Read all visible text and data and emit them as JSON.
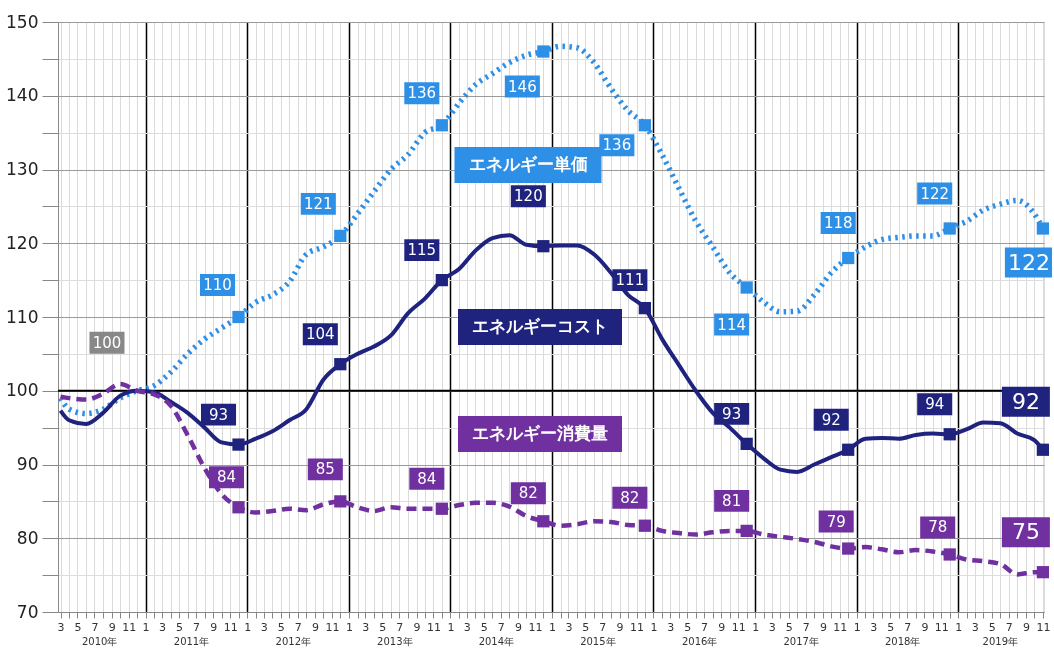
{
  "chart_data": {
    "type": "line",
    "x": [
      "2010-03",
      "2010-04",
      "2010-06",
      "2010-08",
      "2010-10",
      "2010-12",
      "2011-02",
      "2011-04",
      "2011-06",
      "2011-08",
      "2011-10",
      "2011-12",
      "2012-02",
      "2012-04",
      "2012-06",
      "2012-08",
      "2012-10",
      "2012-12",
      "2013-02",
      "2013-04",
      "2013-06",
      "2013-08",
      "2013-10",
      "2013-12",
      "2014-02",
      "2014-04",
      "2014-06",
      "2014-08",
      "2014-10",
      "2014-12",
      "2015-02",
      "2015-04",
      "2015-06",
      "2015-08",
      "2015-10",
      "2015-12",
      "2016-02",
      "2016-04",
      "2016-06",
      "2016-08",
      "2016-10",
      "2016-12",
      "2017-02",
      "2017-04",
      "2017-06",
      "2017-08",
      "2017-10",
      "2017-12",
      "2018-02",
      "2018-04",
      "2018-06",
      "2018-08",
      "2018-10",
      "2018-12",
      "2019-02",
      "2019-04",
      "2019-06",
      "2019-08",
      "2019-10",
      "2019-11"
    ],
    "series": [
      {
        "name": "エネルギー単価",
        "color": "#2e8fe6",
        "line_style": "dotted",
        "values": [
          99,
          97.5,
          96.9,
          97.5,
          99,
          100,
          100.7,
          102.5,
          105,
          107,
          108.5,
          110,
          112,
          113,
          114.8,
          118.5,
          119.5,
          121,
          124,
          127,
          130,
          132,
          135,
          136,
          139,
          141.5,
          143,
          144.5,
          145.5,
          146,
          146.7,
          146.5,
          144.5,
          141,
          138,
          136,
          132,
          127.5,
          123,
          119.5,
          116,
          114,
          112,
          110.7,
          110.8,
          113,
          116,
          118,
          119.5,
          120.5,
          120.8,
          121,
          121,
          122,
          123,
          124.5,
          125.3,
          125.8,
          124,
          122
        ],
        "value_labels": [
          null,
          null,
          null,
          null,
          null,
          null,
          null,
          null,
          null,
          null,
          null,
          "110",
          null,
          null,
          null,
          null,
          null,
          "121",
          null,
          null,
          null,
          null,
          null,
          "136",
          null,
          null,
          null,
          null,
          null,
          "146",
          null,
          null,
          null,
          null,
          null,
          "136",
          null,
          null,
          null,
          null,
          null,
          "114",
          null,
          null,
          null,
          null,
          null,
          "118",
          null,
          null,
          null,
          null,
          null,
          "122",
          null,
          null,
          null,
          null,
          null,
          "122"
        ]
      },
      {
        "name": "エネルギーコスト",
        "color": "#1f237e",
        "line_style": "solid",
        "values": [
          97.3,
          96,
          95.5,
          97,
          99.3,
          100,
          99.8,
          98.5,
          97,
          95,
          93,
          92.7,
          93.5,
          94.5,
          96,
          97.5,
          101.5,
          103.6,
          105,
          106,
          107.5,
          110.5,
          112.5,
          115,
          116.5,
          119,
          120.7,
          121.1,
          119.8,
          119.6,
          119.7,
          119.7,
          118.5,
          116,
          113,
          111.2,
          107,
          103.5,
          100,
          97,
          95,
          92.8,
          90.8,
          89.3,
          89,
          90,
          91,
          92,
          93.5,
          93.6,
          93.5,
          94,
          94.2,
          94.1,
          94.8,
          95.7,
          95.6,
          94.2,
          93.3,
          92
        ],
        "value_labels": [
          null,
          null,
          null,
          null,
          null,
          null,
          null,
          null,
          null,
          null,
          null,
          "93",
          null,
          null,
          null,
          null,
          null,
          "104",
          null,
          null,
          null,
          null,
          null,
          "115",
          null,
          null,
          null,
          null,
          null,
          "120",
          null,
          null,
          null,
          null,
          null,
          "111",
          null,
          null,
          null,
          null,
          null,
          "93",
          null,
          null,
          null,
          null,
          null,
          "92",
          null,
          null,
          null,
          null,
          null,
          "94",
          null,
          null,
          null,
          null,
          null,
          "92"
        ]
      },
      {
        "name": "エネルギー消費量",
        "color": "#7030a0",
        "line_style": "dashed",
        "values": [
          99.2,
          99,
          98.8,
          99.6,
          100.9,
          100,
          99.5,
          98,
          94,
          89.5,
          86,
          84.2,
          83.5,
          83.7,
          84,
          83.8,
          84.6,
          85,
          84.2,
          83.7,
          84.2,
          84,
          84,
          84,
          84.5,
          84.8,
          84.8,
          84.3,
          83,
          82.3,
          81.7,
          81.9,
          82.3,
          82.2,
          81.8,
          81.7,
          81,
          80.7,
          80.5,
          80.8,
          81,
          81,
          80.5,
          80.2,
          79.9,
          79.5,
          78.9,
          78.6,
          78.8,
          78.5,
          78.1,
          78.4,
          78.2,
          77.8,
          77.1,
          76.9,
          76.5,
          75.1,
          75.4,
          75.4
        ],
        "value_labels": [
          null,
          null,
          null,
          null,
          null,
          null,
          null,
          null,
          null,
          null,
          null,
          "84",
          null,
          null,
          null,
          null,
          null,
          "85",
          null,
          null,
          null,
          null,
          null,
          "84",
          null,
          null,
          null,
          null,
          null,
          "82",
          null,
          null,
          null,
          null,
          null,
          "82",
          null,
          null,
          null,
          null,
          null,
          "81",
          null,
          null,
          null,
          null,
          null,
          "79",
          null,
          null,
          null,
          null,
          null,
          "78",
          null,
          null,
          null,
          null,
          null,
          "75"
        ]
      }
    ],
    "annotations": [
      {
        "text": "100",
        "x": "2010-12",
        "y": 100
      }
    ],
    "ylim": [
      70,
      150
    ],
    "yticks": [
      70,
      {
        "value": 75,
        "label": null
      },
      80,
      {
        "value": 85,
        "label": null
      },
      90,
      {
        "value": 95,
        "label": null
      },
      100,
      {
        "value": 105,
        "label": null
      },
      110,
      {
        "value": 115,
        "label": null
      },
      120,
      {
        "value": 125,
        "label": null
      },
      130,
      {
        "value": 135,
        "label": null
      },
      140,
      {
        "value": 145,
        "label": null
      },
      150
    ],
    "xlim": [
      "2010-02-20",
      "2019-11-05"
    ],
    "xticks": [
      {
        "value": "2010-03",
        "label": "3"
      },
      {
        "value": "2010-04",
        "label": null
      },
      {
        "value": "2010-05",
        "label": "5"
      },
      {
        "value": "2010-06",
        "label": null
      },
      {
        "value": "2010-07",
        "label": "7"
      },
      {
        "value": "2010-08",
        "label": null
      },
      {
        "value": "2010-09",
        "label": "9"
      },
      {
        "value": "2010-10",
        "label": null
      },
      {
        "value": "2010-11",
        "label": "11"
      },
      {
        "value": "2010-12",
        "label": null
      },
      {
        "value": "2011-01",
        "label": "1"
      },
      {
        "value": "2011-02",
        "label": null
      },
      {
        "value": "2011-03",
        "label": "3"
      },
      {
        "value": "2011-04",
        "label": null
      },
      {
        "value": "2011-05",
        "label": "5"
      },
      {
        "value": "2011-06",
        "label": null
      },
      {
        "value": "2011-07",
        "label": "7"
      },
      {
        "value": "2011-08",
        "label": null
      },
      {
        "value": "2011-09",
        "label": "9"
      },
      {
        "value": "2011-10",
        "label": null
      },
      {
        "value": "2011-11",
        "label": "11"
      },
      {
        "value": "2011-12",
        "label": null
      },
      {
        "value": "2012-01",
        "label": "1"
      },
      {
        "value": "2012-02",
        "label": null
      },
      {
        "value": "2012-03",
        "label": "3"
      },
      {
        "value": "2012-04",
        "label": null
      },
      {
        "value": "2012-05",
        "label": "5"
      },
      {
        "value": "2012-06",
        "label": null
      },
      {
        "value": "2012-07",
        "label": "7"
      },
      {
        "value": "2012-08",
        "label": null
      },
      {
        "value": "2012-09",
        "label": "9"
      },
      {
        "value": "2012-10",
        "label": null
      },
      {
        "value": "2012-11",
        "label": "11"
      },
      {
        "value": "2012-12",
        "label": null
      },
      {
        "value": "2013-01",
        "label": "1"
      },
      {
        "value": "2013-02",
        "label": null
      },
      {
        "value": "2013-03",
        "label": "3"
      },
      {
        "value": "2013-04",
        "label": null
      },
      {
        "value": "2013-05",
        "label": "5"
      },
      {
        "value": "2013-06",
        "label": null
      },
      {
        "value": "2013-07",
        "label": "7"
      },
      {
        "value": "2013-08",
        "label": null
      },
      {
        "value": "2013-09",
        "label": "9"
      },
      {
        "value": "2013-10",
        "label": null
      },
      {
        "value": "2013-11",
        "label": "11"
      },
      {
        "value": "2013-12",
        "label": null
      },
      {
        "value": "2014-01",
        "label": "1"
      },
      {
        "value": "2014-02",
        "label": null
      },
      {
        "value": "2014-03",
        "label": "3"
      },
      {
        "value": "2014-04",
        "label": null
      },
      {
        "value": "2014-05",
        "label": "5"
      },
      {
        "value": "2014-06",
        "label": null
      },
      {
        "value": "2014-07",
        "label": "7"
      },
      {
        "value": "2014-08",
        "label": null
      },
      {
        "value": "2014-09",
        "label": "9"
      },
      {
        "value": "2014-10",
        "label": null
      },
      {
        "value": "2014-11",
        "label": "11"
      },
      {
        "value": "2014-12",
        "label": null
      },
      {
        "value": "2015-01",
        "label": "1"
      },
      {
        "value": "2015-02",
        "label": null
      },
      {
        "value": "2015-03",
        "label": "3"
      },
      {
        "value": "2015-04",
        "label": null
      },
      {
        "value": "2015-05",
        "label": "5"
      },
      {
        "value": "2015-06",
        "label": null
      },
      {
        "value": "2015-07",
        "label": "7"
      },
      {
        "value": "2015-08",
        "label": null
      },
      {
        "value": "2015-09",
        "label": "9"
      },
      {
        "value": "2015-10",
        "label": null
      },
      {
        "value": "2015-11",
        "label": "11"
      },
      {
        "value": "2015-12",
        "label": null
      },
      {
        "value": "2016-01",
        "label": "1"
      },
      {
        "value": "2016-02",
        "label": null
      },
      {
        "value": "2016-03",
        "label": "3"
      },
      {
        "value": "2016-04",
        "label": null
      },
      {
        "value": "2016-05",
        "label": "5"
      },
      {
        "value": "2016-06",
        "label": null
      },
      {
        "value": "2016-07",
        "label": "7"
      },
      {
        "value": "2016-08",
        "label": null
      },
      {
        "value": "2016-09",
        "label": "9"
      },
      {
        "value": "2016-10",
        "label": null
      },
      {
        "value": "2016-11",
        "label": "11"
      },
      {
        "value": "2016-12",
        "label": null
      },
      {
        "value": "2017-01",
        "label": "1"
      },
      {
        "value": "2017-02",
        "label": null
      },
      {
        "value": "2017-03",
        "label": "3"
      },
      {
        "value": "2017-04",
        "label": null
      },
      {
        "value": "2017-05",
        "label": "5"
      },
      {
        "value": "2017-06",
        "label": null
      },
      {
        "value": "2017-07",
        "label": "7"
      },
      {
        "value": "2017-08",
        "label": null
      },
      {
        "value": "2017-09",
        "label": "9"
      },
      {
        "value": "2017-10",
        "label": null
      },
      {
        "value": "2017-11",
        "label": "11"
      },
      {
        "value": "2017-12",
        "label": null
      },
      {
        "value": "2018-01",
        "label": "1"
      },
      {
        "value": "2018-02",
        "label": null
      },
      {
        "value": "2018-03",
        "label": "3"
      },
      {
        "value": "2018-04",
        "label": null
      },
      {
        "value": "2018-05",
        "label": "5"
      },
      {
        "value": "2018-06",
        "label": null
      },
      {
        "value": "2018-07",
        "label": "7"
      },
      {
        "value": "2018-08",
        "label": null
      },
      {
        "value": "2018-09",
        "label": "9"
      },
      {
        "value": "2018-10",
        "label": null
      },
      {
        "value": "2018-11",
        "label": "11"
      },
      {
        "value": "2018-12",
        "label": null
      },
      {
        "value": "2019-01",
        "label": "1"
      },
      {
        "value": "2019-02",
        "label": null
      },
      {
        "value": "2019-03",
        "label": "3"
      },
      {
        "value": "2019-04",
        "label": null
      },
      {
        "value": "2019-05",
        "label": "5"
      },
      {
        "value": "2019-06",
        "label": null
      },
      {
        "value": "2019-07",
        "label": "7"
      },
      {
        "value": "2019-08",
        "label": null
      },
      {
        "value": "2019-09",
        "label": "9"
      },
      {
        "value": "2019-10",
        "label": null
      },
      {
        "value": "2019-11",
        "label": "11"
      }
    ],
    "x2lim": [
      "2010-02-20",
      "2019-11-05"
    ],
    "x2ticks": [
      {
        "value": "2010-07-20",
        "label": "2010年"
      },
      {
        "value": "2011-06-15",
        "label": "2011年"
      },
      {
        "value": "2012-06-15",
        "label": "2012年"
      },
      {
        "value": "2013-06-15",
        "label": "2013年"
      },
      {
        "value": "2014-06-15",
        "label": "2014年"
      },
      {
        "value": "2015-06-15",
        "label": "2015年"
      },
      {
        "value": "2016-06-15",
        "label": "2016年"
      },
      {
        "value": "2017-06-15",
        "label": "2017年"
      },
      {
        "value": "2018-06-15",
        "label": "2018年"
      },
      {
        "value": "2019-06-01",
        "label": "2019年"
      }
    ],
    "ref_lines": [
      {
        "axis": "y",
        "value": 100,
        "color": "#000000"
      }
    ],
    "grid": true
  }
}
